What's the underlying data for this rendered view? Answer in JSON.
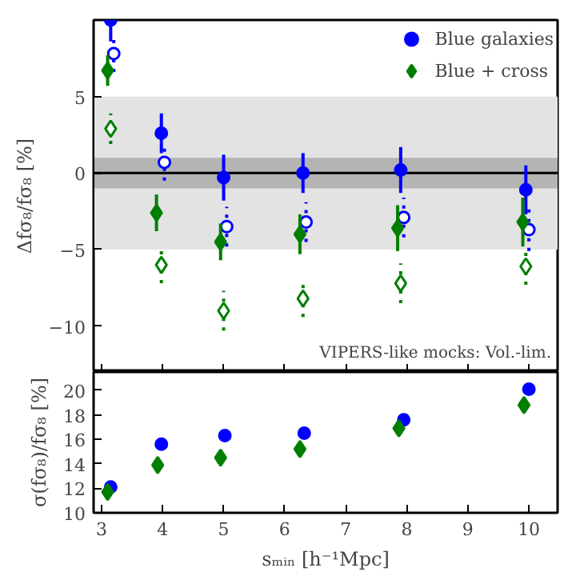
{
  "chart_data": [
    {
      "type": "scatter",
      "ylabel": "Δfσ₈/fσ₈ [%]",
      "xlim": [
        2.87,
        10.47
      ],
      "xticks": [
        3,
        4,
        5,
        6,
        7,
        8,
        9,
        10
      ],
      "ylim": [
        -13,
        10
      ],
      "yticks": [
        -10,
        -5,
        0,
        5
      ],
      "tick_labels": "y",
      "legend": "top right",
      "grid": false,
      "annotations": [
        "VIPERS-like mocks: Vol.-lim."
      ],
      "bands": [
        {
          "axis": "y",
          "from": -5,
          "to": 5,
          "color": "#e3e3e3"
        },
        {
          "axis": "y",
          "from": -1,
          "to": 1,
          "color": "#b4b4b4"
        }
      ],
      "ref_lines": [
        {
          "axis": "y",
          "value": 0,
          "color": "#000000"
        }
      ],
      "series": [
        {
          "name": "Blue galaxies",
          "color": "#0000ff",
          "marker": "circle",
          "line_style": "solid",
          "x": [
            3.15,
            3.98,
            5.0,
            6.3,
            7.9,
            9.95
          ],
          "values": [
            10.0,
            2.6,
            -0.3,
            0.0,
            0.2,
            -1.1
          ],
          "errors": [
            1.4,
            1.3,
            1.5,
            1.3,
            1.5,
            1.6
          ]
        },
        {
          "color": "#0000ff",
          "marker": "circle",
          "line_style": "dotted",
          "x": [
            3.2,
            4.03,
            5.05,
            6.35,
            7.95,
            10.0
          ],
          "values": [
            7.8,
            0.7,
            -3.5,
            -3.2,
            -2.9,
            -3.7
          ],
          "errors": [
            1.2,
            1.2,
            1.3,
            1.3,
            1.3,
            1.4
          ]
        },
        {
          "name": "Blue + cross",
          "color": "#007f00",
          "marker": "diamond",
          "line_style": "solid",
          "x": [
            3.1,
            3.9,
            4.95,
            6.25,
            7.85,
            9.9
          ],
          "values": [
            6.7,
            -2.6,
            -4.5,
            -4.0,
            -3.6,
            -3.2
          ],
          "errors": [
            1.0,
            1.2,
            1.2,
            1.3,
            1.5,
            1.6
          ]
        },
        {
          "color": "#007f00",
          "marker": "diamond",
          "line_style": "dotted",
          "x": [
            3.15,
            3.98,
            5.0,
            6.3,
            7.9,
            9.95
          ],
          "values": [
            2.9,
            -6.0,
            -9.0,
            -8.2,
            -7.2,
            -6.1
          ],
          "errors": [
            1.0,
            1.2,
            1.3,
            1.2,
            1.3,
            1.2
          ]
        }
      ]
    },
    {
      "type": "scatter",
      "ylabel": "σ(fσ₈)/fσ₈ [%]",
      "xlabel": "sₘᵢₙ [h⁻¹Mpc]",
      "xlim": [
        2.87,
        10.47
      ],
      "xticks": [
        3,
        4,
        5,
        6,
        7,
        8,
        9,
        10
      ],
      "ylim": [
        10,
        21.5
      ],
      "yticks": [
        10,
        12,
        14,
        16,
        18,
        20
      ],
      "grid": false,
      "series": [
        {
          "color": "#0000ff",
          "marker": "circle",
          "x": [
            3.15,
            3.98,
            5.02,
            6.32,
            7.95,
            10.0
          ],
          "values": [
            12.1,
            15.6,
            16.3,
            16.5,
            17.6,
            20.1
          ]
        },
        {
          "color": "#007f00",
          "marker": "diamond",
          "x": [
            3.1,
            3.92,
            4.95,
            6.25,
            7.87,
            9.92
          ],
          "values": [
            11.7,
            13.9,
            14.5,
            15.2,
            16.9,
            18.8
          ]
        }
      ]
    }
  ]
}
